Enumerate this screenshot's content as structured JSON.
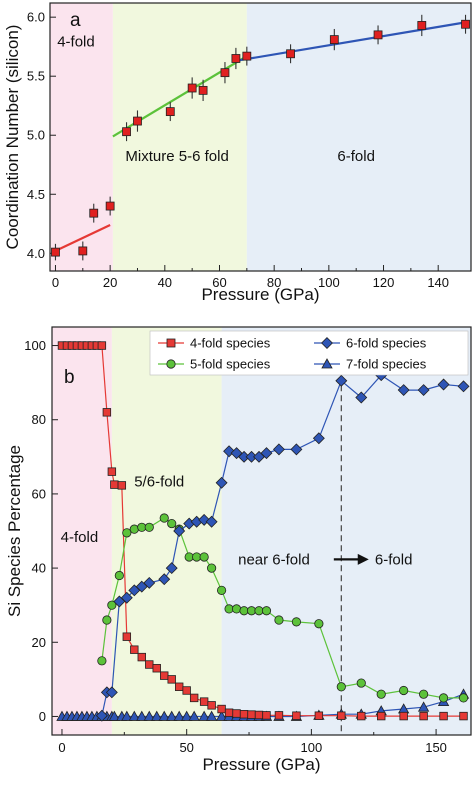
{
  "chart_data": [
    {
      "type": "scatter",
      "panel_label": "a",
      "xlabel": "Pressure (GPa)",
      "ylabel": "Coordination Number (silicon)",
      "xlim": [
        -2,
        152
      ],
      "ylim": [
        3.85,
        6.12
      ],
      "x_ticks": [
        0,
        20,
        40,
        60,
        80,
        100,
        120,
        140
      ],
      "y_ticks": [
        4.0,
        4.5,
        5.0,
        5.5,
        6.0
      ],
      "x_tick_labels": [
        "0",
        "20",
        "40",
        "60",
        "80",
        "100",
        "120",
        "140"
      ],
      "y_tick_labels": [
        "4.0",
        "4.5",
        "5.0",
        "5.5",
        "6.0"
      ],
      "regions": [
        {
          "label": "4-fold",
          "x": [
            -2,
            21
          ],
          "color": "#fbe4ee"
        },
        {
          "label": "Mixture 5-6 fold",
          "x": [
            21,
            70
          ],
          "color": "#f1f8de"
        },
        {
          "label": "6-fold",
          "x": [
            70,
            152
          ],
          "color": "#e6eef7"
        }
      ],
      "points": [
        {
          "x": 0,
          "y": 4.01,
          "err": 0.07
        },
        {
          "x": 10,
          "y": 4.02,
          "err": 0.08
        },
        {
          "x": 14,
          "y": 4.34,
          "err": 0.08
        },
        {
          "x": 20,
          "y": 4.4,
          "err": 0.08
        },
        {
          "x": 26,
          "y": 5.03,
          "err": 0.08
        },
        {
          "x": 30,
          "y": 5.12,
          "err": 0.09
        },
        {
          "x": 42,
          "y": 5.2,
          "err": 0.08
        },
        {
          "x": 50,
          "y": 5.4,
          "err": 0.09
        },
        {
          "x": 54,
          "y": 5.38,
          "err": 0.09
        },
        {
          "x": 62,
          "y": 5.53,
          "err": 0.09
        },
        {
          "x": 66,
          "y": 5.65,
          "err": 0.09
        },
        {
          "x": 70,
          "y": 5.67,
          "err": 0.08
        },
        {
          "x": 86,
          "y": 5.69,
          "err": 0.08
        },
        {
          "x": 102,
          "y": 5.81,
          "err": 0.09
        },
        {
          "x": 118,
          "y": 5.85,
          "err": 0.08
        },
        {
          "x": 134,
          "y": 5.93,
          "err": 0.09
        },
        {
          "x": 150,
          "y": 5.94,
          "err": 0.08
        }
      ],
      "fit_lines": [
        {
          "color": "#e53935",
          "x": [
            0,
            20
          ],
          "y": [
            4.02,
            4.24
          ]
        },
        {
          "color": "#5cc23a",
          "x": [
            21,
            70
          ],
          "y": [
            4.99,
            5.67
          ]
        },
        {
          "color": "#2e55b5",
          "x": [
            66,
            151
          ],
          "y": [
            5.63,
            5.96
          ]
        }
      ],
      "marker_color": "#e02020"
    },
    {
      "type": "line",
      "panel_label": "b",
      "xlabel": "Pressure (GPa)",
      "ylabel": "Si Species Percentage",
      "xlim": [
        -4,
        164
      ],
      "ylim": [
        -5,
        105
      ],
      "x_ticks": [
        0,
        50,
        100,
        150
      ],
      "y_ticks": [
        0,
        20,
        40,
        60,
        80,
        100
      ],
      "x_tick_labels": [
        "0",
        "50",
        "100",
        "150"
      ],
      "y_tick_labels": [
        "0",
        "20",
        "40",
        "60",
        "80",
        "100"
      ],
      "regions": [
        {
          "x": [
            -4,
            20
          ],
          "color": "#fbe4ee"
        },
        {
          "x": [
            20,
            64
          ],
          "color": "#f1f8de"
        },
        {
          "x": [
            64,
            164
          ],
          "color": "#e6eef7"
        }
      ],
      "region_labels": [
        {
          "text": "4-fold",
          "x": 7,
          "y": 47
        },
        {
          "text": "5/6-fold",
          "x": 39,
          "y": 62
        },
        {
          "text": "near 6-fold",
          "x": 85,
          "y": 41
        },
        {
          "text": "6-fold",
          "x": 133,
          "y": 41
        }
      ],
      "transition_line_x": 112,
      "transition_arrow": {
        "x_start": 109,
        "x_end": 123,
        "y": 41
      },
      "legend_position": "top",
      "legend": [
        "4-fold species",
        "5-fold species",
        "6-fold species",
        "7-fold species"
      ],
      "series": [
        {
          "name": "4-fold species",
          "color": "#e53935",
          "marker": "square",
          "x": [
            0,
            2,
            4,
            6,
            8,
            10,
            12,
            14,
            16,
            18,
            20,
            21,
            24,
            26,
            29,
            32,
            35,
            38,
            41,
            44,
            47,
            50,
            53,
            57,
            60,
            64,
            67,
            70,
            73,
            76,
            79,
            82,
            87,
            94,
            103,
            112,
            120,
            128,
            137,
            145,
            153,
            161
          ],
          "y": [
            100,
            100,
            100,
            100,
            100,
            100,
            100,
            100,
            100,
            82,
            66,
            62.5,
            62.3,
            21.5,
            18,
            16,
            14,
            13,
            11,
            10,
            8,
            7,
            5,
            4,
            3,
            2,
            1,
            0.8,
            0.6,
            0.5,
            0.4,
            0.3,
            0.3,
            0.2,
            0.2,
            0.2,
            0.1,
            0.1,
            0.1,
            0.1,
            0.1,
            0.1
          ]
        },
        {
          "name": "5-fold species",
          "color": "#5cc23a",
          "marker": "circle",
          "x": [
            16,
            18,
            20,
            23,
            26,
            29,
            32,
            35,
            41,
            44,
            47,
            51,
            54,
            57,
            60,
            64,
            67,
            70,
            73,
            76,
            79,
            82,
            87,
            94,
            103,
            112,
            120,
            128,
            137,
            145,
            153,
            161
          ],
          "y": [
            15,
            26,
            30,
            38,
            49.5,
            50.5,
            51,
            51,
            53.5,
            52,
            50.5,
            43,
            43,
            43,
            40,
            34,
            29,
            29,
            28.5,
            28.5,
            28.5,
            28.5,
            26,
            25.5,
            25,
            8,
            9,
            6,
            7,
            6,
            5,
            5
          ]
        },
        {
          "name": "6-fold species",
          "color": "#2e55b5",
          "marker": "diamond",
          "x": [
            16,
            18,
            20,
            23,
            26,
            29,
            32,
            35,
            41,
            44,
            47,
            51,
            54,
            57,
            60,
            64,
            67,
            70,
            73,
            76,
            79,
            82,
            87,
            94,
            103,
            112,
            120,
            128,
            137,
            145,
            153,
            161
          ],
          "y": [
            0.2,
            6.5,
            6.5,
            31,
            32,
            34,
            35,
            36,
            37,
            40,
            50,
            52,
            52.5,
            53,
            52.5,
            63,
            71.5,
            71,
            70,
            70,
            70,
            71,
            72,
            72,
            75,
            90.5,
            86,
            92,
            88,
            88,
            89.5,
            89
          ]
        },
        {
          "name": "7-fold species",
          "color": "#2e55b5",
          "marker": "triangle",
          "x": [
            0,
            2,
            4,
            6,
            8,
            10,
            12,
            14,
            16,
            18,
            20,
            21,
            24,
            26,
            29,
            32,
            35,
            38,
            41,
            44,
            47,
            50,
            53,
            57,
            60,
            64,
            67,
            70,
            73,
            76,
            79,
            82,
            87,
            94,
            103,
            112,
            120,
            128,
            137,
            145,
            153,
            161
          ],
          "y": [
            0,
            0,
            0,
            0,
            0,
            0,
            0,
            0,
            0,
            0,
            0,
            0,
            0,
            0,
            0,
            0,
            0,
            0,
            0,
            0,
            0,
            0,
            0,
            0,
            0,
            0,
            0,
            0,
            0,
            0,
            0,
            0,
            0,
            0,
            0.3,
            0.6,
            0.6,
            1.5,
            2,
            2.5,
            4,
            6
          ]
        }
      ]
    }
  ]
}
